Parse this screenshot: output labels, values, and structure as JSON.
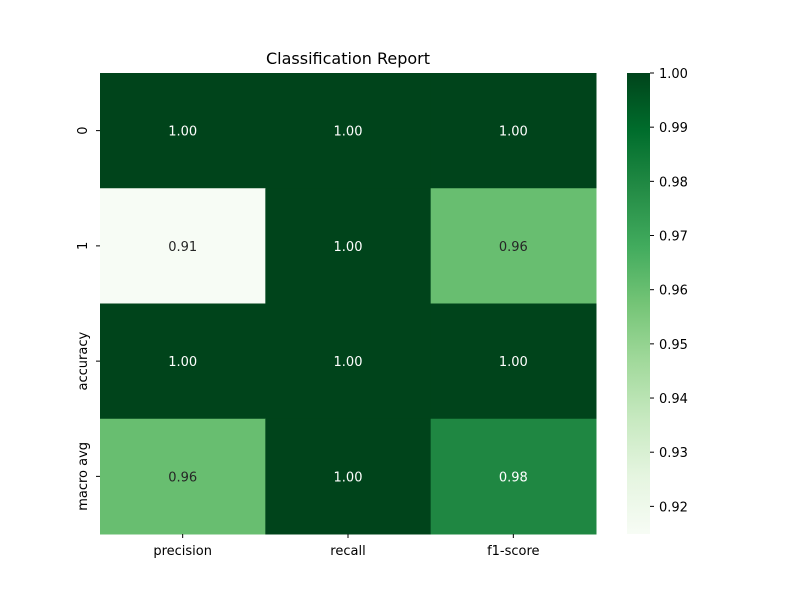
{
  "chart_data": {
    "type": "heatmap",
    "title": "Classification Report",
    "xlabel": "",
    "ylabel": "",
    "columns": [
      "precision",
      "recall",
      "f1-score"
    ],
    "rows": [
      "0",
      "1",
      "accuracy",
      "macro avg"
    ],
    "values": [
      [
        1.0,
        1.0,
        1.0
      ],
      [
        0.91,
        1.0,
        0.96
      ],
      [
        1.0,
        1.0,
        1.0
      ],
      [
        0.96,
        1.0,
        0.98
      ]
    ],
    "value_labels": [
      [
        "1.00",
        "1.00",
        "1.00"
      ],
      [
        "0.91",
        "1.00",
        "0.96"
      ],
      [
        "1.00",
        "1.00",
        "1.00"
      ],
      [
        "0.96",
        "1.00",
        "0.98"
      ]
    ],
    "colormap": "Greens",
    "colorbar": {
      "vmin": 0.9149,
      "vmax": 1.0,
      "ticks": [
        0.92,
        0.93,
        0.94,
        0.95,
        0.96,
        0.97,
        0.98,
        0.99,
        1.0
      ],
      "tick_labels": [
        "0.92",
        "0.93",
        "0.94",
        "0.95",
        "0.96",
        "0.97",
        "0.98",
        "0.99",
        "1.00"
      ]
    }
  }
}
